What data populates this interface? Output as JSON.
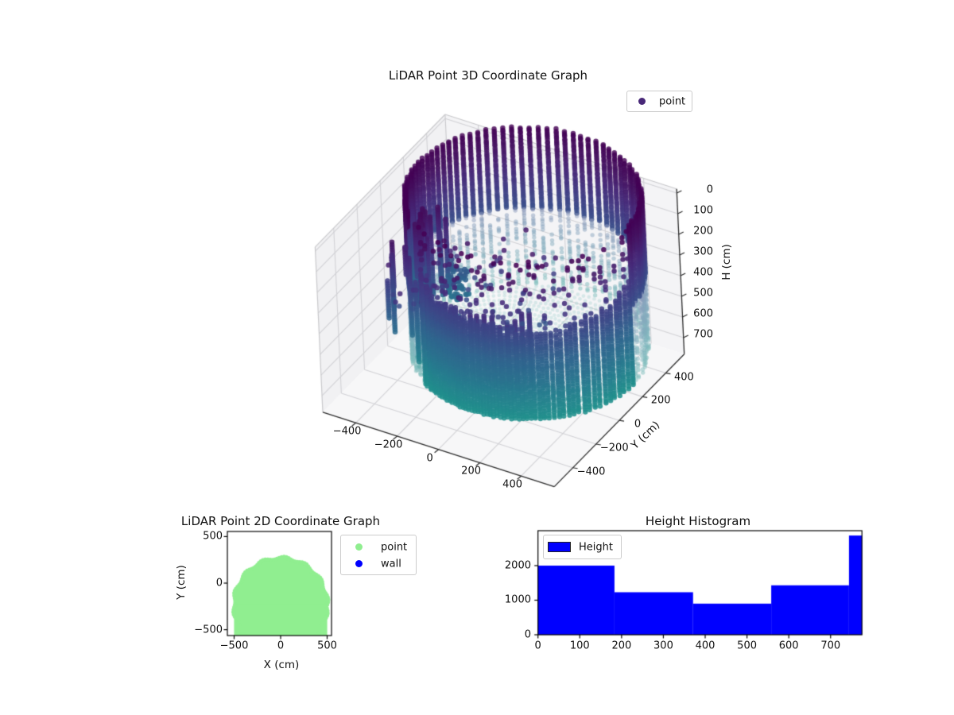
{
  "figure": {
    "background": "#ffffff"
  },
  "chart_data": [
    {
      "type": "scatter",
      "projection": "3d",
      "title": "LiDAR Point 3D Coordinate Graph",
      "legend": {
        "position": "upper right",
        "items": [
          {
            "label": "point",
            "color": "#482878",
            "marker": "dot"
          }
        ]
      },
      "xlabel": "",
      "ylabel": "Y (cm)",
      "zlabel": "H (cm)",
      "x_ticks": [
        -400,
        -200,
        0,
        200,
        400
      ],
      "y_ticks": [
        -400,
        -200,
        0,
        200,
        400
      ],
      "h_ticks": [
        0,
        100,
        200,
        300,
        400,
        500,
        600,
        700
      ],
      "xlim": [
        -560,
        560
      ],
      "ylim": [
        -560,
        560
      ],
      "hlim": [
        -20,
        780
      ],
      "h_axis_inverted": true,
      "grid": true,
      "colormap": "viridis (dark purple at H=0 to teal at H=760)",
      "colormap_stops": [
        "#440154",
        "#462e7b",
        "#38598c",
        "#31688e",
        "#2a818c",
        "#209689"
      ],
      "cloud": {
        "description": "LiDAR scan of a circular room: cylindrical wall of points colored by height, pale floor rings, object clusters on left, sparse noise points",
        "room_center_xy_cm": [
          0,
          -230
        ],
        "room_radius_cm": 500,
        "lidar_origin_xy_cm": [
          0,
          0
        ],
        "wall_height_range_cm": [
          0,
          760
        ],
        "floor_height_cm": 755,
        "floor_ring_spacing_cm": 30,
        "wall_azimuth_step_deg": 3
      }
    },
    {
      "type": "scatter",
      "projection": "2d",
      "title": "LiDAR Point 2D Coordinate Graph",
      "xlabel": "X (cm)",
      "ylabel": "Y (cm)",
      "x_ticks": [
        -500,
        0,
        500
      ],
      "y_ticks": [
        500,
        0,
        -500
      ],
      "xlim": [
        -572,
        547
      ],
      "ylim": [
        -563,
        554
      ],
      "legend": {
        "position": "upper right",
        "items": [
          {
            "label": "point",
            "color": "#90ee90",
            "marker": "dot"
          },
          {
            "label": "wall",
            "color": "#0000ff",
            "marker": "dot"
          }
        ]
      },
      "blob": {
        "center_xy_cm": [
          0,
          -230
        ],
        "radius_cm": 500,
        "color": "#90ee90",
        "note": "solid light-green disc of scan points, clipped at bottom axis edge"
      }
    },
    {
      "type": "bar",
      "title": "Height Histogram",
      "legend": {
        "position": "upper left",
        "items": [
          {
            "label": "Height",
            "color": "#0000ff",
            "marker": "rect"
          }
        ]
      },
      "bar_color": "#0000ff",
      "bin_edges": [
        0,
        183,
        371,
        558,
        744,
        775
      ],
      "counts": [
        2000,
        1230,
        900,
        1430,
        2870
      ],
      "x_ticks": [
        0,
        100,
        200,
        300,
        400,
        500,
        600,
        700
      ],
      "y_ticks": [
        0,
        1000,
        2000
      ],
      "xlim": [
        0,
        775
      ],
      "ylim": [
        0,
        3010
      ],
      "xlabel": "",
      "ylabel": ""
    }
  ]
}
